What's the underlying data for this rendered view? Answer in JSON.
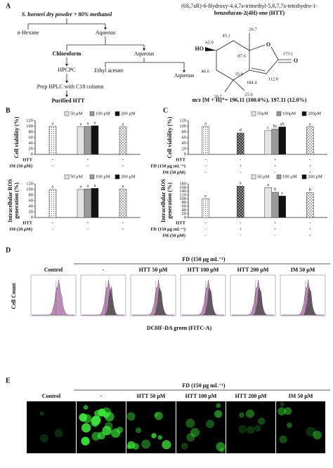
{
  "panel_labels": [
    "A",
    "B",
    "C",
    "D",
    "E"
  ],
  "scheme": {
    "start": "S. horneri dry powder + 80% methanol",
    "steps": [
      "n-Hexane",
      "Aqueous",
      "Chloroform",
      "Aqueous",
      "HPCPC",
      "Ethyl acetate",
      "Aqueous",
      "Prep HPLC with C18 column",
      "Purified HTT"
    ]
  },
  "compound": {
    "name_lines": [
      "(6S,7aR)-6-Hydroxy-4,4,7a-trimethyl-5,6,7,7a-tetrahydro-1-",
      "benzofuran-2(4H)-one (HTT)"
    ],
    "atoms": [
      "HO",
      "O",
      "O"
    ],
    "shifts": [
      "26.7",
      "45.1",
      "65.9",
      "87.6",
      "173.1",
      "46.6",
      "35.9",
      "184.4",
      "112.0",
      "29.7",
      "25.6"
    ],
    "mass": "m/z [M + H]⁺= 196.11 (100.0%), 197.11 (12.0%)"
  },
  "chart_data": [
    {
      "type": "bar",
      "ylabel": [
        "Cell viability (%)"
      ],
      "ylim": [
        0,
        120
      ],
      "yticks": [
        0,
        20,
        40,
        60,
        80,
        100,
        120
      ],
      "legend": [
        "50 μM",
        "100 μM",
        "200 μM"
      ],
      "legend_fills": [
        "light",
        "mid",
        "black"
      ],
      "groups": [
        [
          100
        ],
        [
          98,
          100,
          102
        ],
        [
          98
        ]
      ],
      "fills": [
        [
          "dots"
        ],
        [
          "light",
          "mid",
          "black"
        ],
        [
          "check"
        ]
      ],
      "letters": [
        [
          "a"
        ],
        [
          "a",
          "a",
          "a"
        ],
        [
          "a"
        ]
      ],
      "rows": [
        {
          "label": "HTT",
          "marks": [
            "-",
            "+",
            "-"
          ]
        },
        {
          "label": "IM (50 μM)",
          "marks": [
            "-",
            "-",
            "+"
          ]
        }
      ]
    },
    {
      "type": "bar",
      "ylabel": [
        "Intracellular ROS",
        "generation (%)"
      ],
      "ylim": [
        0,
        120
      ],
      "yticks": [
        0,
        20,
        40,
        60,
        80,
        100,
        120
      ],
      "legend": [
        "50 μM",
        "100 μM",
        "200 μM"
      ],
      "legend_fills": [
        "light",
        "mid",
        "black"
      ],
      "groups": [
        [
          100
        ],
        [
          100,
          102,
          104
        ],
        [
          101
        ]
      ],
      "fills": [
        [
          "dots"
        ],
        [
          "light",
          "mid",
          "black"
        ],
        [
          "check"
        ]
      ],
      "letters": [
        [
          "a"
        ],
        [
          "a",
          "a",
          "a"
        ],
        [
          "a"
        ]
      ],
      "rows": [
        {
          "label": "HTT",
          "marks": [
            "-",
            "+",
            "-"
          ]
        },
        {
          "label": "IM (50 μM)",
          "marks": [
            "-",
            "-",
            "+"
          ]
        }
      ]
    },
    {
      "type": "bar",
      "ylabel": [
        "Cell viability (%)"
      ],
      "ylim": [
        0,
        120
      ],
      "yticks": [
        0,
        20,
        40,
        60,
        80,
        100,
        120
      ],
      "legend": [
        "50μM",
        "100μM",
        "200μM"
      ],
      "legend_fills": [
        "light",
        "mid",
        "black"
      ],
      "groups": [
        [
          100
        ],
        [
          76
        ],
        [
          85,
          90,
          98
        ],
        [
          98
        ]
      ],
      "fills": [
        [
          "dots"
        ],
        [
          "dark-check"
        ],
        [
          "light",
          "mid",
          "black"
        ],
        [
          "check"
        ]
      ],
      "letters": [
        [
          "a"
        ],
        [
          "d"
        ],
        [
          "c",
          "bc",
          "ab"
        ],
        [
          "a"
        ]
      ],
      "rows": [
        {
          "label": "HTT",
          "marks": [
            "-",
            "-",
            "+",
            "-"
          ]
        },
        {
          "label": "FD (150 μg mL⁻¹)",
          "marks": [
            "-",
            "+",
            "+",
            "+"
          ]
        },
        {
          "label": "IM (50 μM)",
          "marks": [
            "-",
            "-",
            "-",
            "+"
          ]
        }
      ]
    },
    {
      "type": "bar",
      "ylabel": [
        "Intracellular ROS",
        "generation (%)"
      ],
      "ylim": [
        0,
        180
      ],
      "yticks": [
        0,
        20,
        40,
        60,
        80,
        100,
        120,
        140,
        160,
        180
      ],
      "legend": [
        "50 μM",
        "100 μM",
        "200 μM"
      ],
      "legend_fills": [
        "light",
        "mid",
        "black"
      ],
      "groups": [
        [
          100
        ],
        [
          168
        ],
        [
          160,
          135,
          115
        ],
        [
          133
        ]
      ],
      "fills": [
        [
          "dots"
        ],
        [
          "dark-check"
        ],
        [
          "light",
          "mid",
          "black"
        ],
        [
          "check"
        ]
      ],
      "letters": [
        [
          "e"
        ],
        [
          "a"
        ],
        [
          "a",
          "b",
          "c"
        ],
        [
          "b"
        ]
      ],
      "rows": [
        {
          "label": "HTT",
          "marks": [
            "-",
            "-",
            "+",
            "-"
          ]
        },
        {
          "label": "FD (150 μg mL⁻¹)",
          "marks": [
            "-",
            "+",
            "+",
            "+"
          ]
        },
        {
          "label": "IM (50 μM)",
          "marks": [
            "-",
            "-",
            "-",
            "+"
          ]
        }
      ]
    }
  ],
  "flow": {
    "header": "FD (150 μg mL⁻¹)",
    "columns": [
      "Control",
      "-",
      "HTT 50 μM",
      "HTT 100 μM",
      "HTT 200 μM",
      "IM 50 μM"
    ],
    "ylabel": "Cell Count",
    "xlabel": "DCHF-DA green (FITC-A)"
  },
  "imaging": {
    "header": "FD (150 μg mL⁻¹)",
    "columns": [
      "Control",
      "-",
      "HTT 50 μM",
      "HTT 100 μM",
      "HTT 200 μM",
      "IM 50 μM"
    ]
  }
}
